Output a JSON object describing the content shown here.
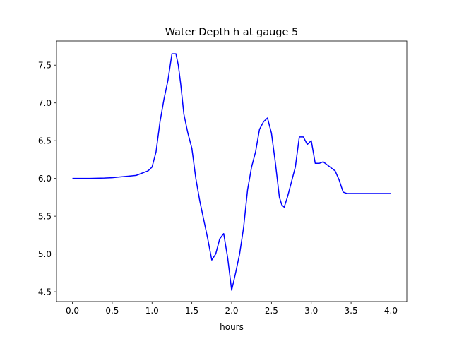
{
  "chart_data": {
    "type": "line",
    "title": "Water Depth h at gauge 5",
    "xlabel": "hours",
    "ylabel": "",
    "xlim": [
      -0.2,
      4.2
    ],
    "ylim": [
      4.37,
      7.82
    ],
    "x_ticks": [
      0.0,
      0.5,
      1.0,
      1.5,
      2.0,
      2.5,
      3.0,
      3.5,
      4.0
    ],
    "x_tick_labels": [
      "0.0",
      "0.5",
      "1.0",
      "1.5",
      "2.0",
      "2.5",
      "3.0",
      "3.5",
      "4.0"
    ],
    "y_ticks": [
      4.5,
      5.0,
      5.5,
      6.0,
      6.5,
      7.0,
      7.5
    ],
    "y_tick_labels": [
      "4.5",
      "5.0",
      "5.5",
      "6.0",
      "6.5",
      "7.0",
      "7.5"
    ],
    "grid": false,
    "series": [
      {
        "name": "",
        "color": "#0000ff",
        "x": [
          0.0,
          0.2,
          0.4,
          0.5,
          0.6,
          0.7,
          0.8,
          0.85,
          0.9,
          0.95,
          1.0,
          1.05,
          1.1,
          1.15,
          1.2,
          1.25,
          1.3,
          1.33,
          1.36,
          1.4,
          1.45,
          1.5,
          1.55,
          1.6,
          1.65,
          1.7,
          1.75,
          1.8,
          1.85,
          1.9,
          1.95,
          2.0,
          2.05,
          2.1,
          2.15,
          2.2,
          2.25,
          2.3,
          2.35,
          2.4,
          2.45,
          2.5,
          2.55,
          2.6,
          2.63,
          2.66,
          2.7,
          2.75,
          2.8,
          2.85,
          2.9,
          2.95,
          3.0,
          3.05,
          3.1,
          3.15,
          3.2,
          3.25,
          3.3,
          3.35,
          3.4,
          3.45,
          3.5,
          3.55,
          3.6,
          3.65,
          3.7,
          3.75,
          3.8,
          3.85,
          3.9,
          3.95,
          4.0
        ],
        "values": [
          6.0,
          6.0,
          6.005,
          6.01,
          6.02,
          6.03,
          6.04,
          6.06,
          6.08,
          6.1,
          6.15,
          6.35,
          6.75,
          7.05,
          7.3,
          7.65,
          7.65,
          7.5,
          7.25,
          6.85,
          6.6,
          6.4,
          6.0,
          5.7,
          5.45,
          5.2,
          4.92,
          5.0,
          5.2,
          5.27,
          4.95,
          4.52,
          4.75,
          5.0,
          5.35,
          5.85,
          6.15,
          6.35,
          6.65,
          6.75,
          6.8,
          6.6,
          6.2,
          5.75,
          5.65,
          5.62,
          5.75,
          5.95,
          6.15,
          6.55,
          6.55,
          6.45,
          6.5,
          6.2,
          6.2,
          6.22,
          6.18,
          6.14,
          6.1,
          5.98,
          5.82,
          5.8,
          5.8,
          5.8,
          5.8,
          5.8,
          5.8,
          5.8,
          5.8,
          5.8,
          5.8,
          5.8,
          5.8
        ]
      }
    ]
  }
}
